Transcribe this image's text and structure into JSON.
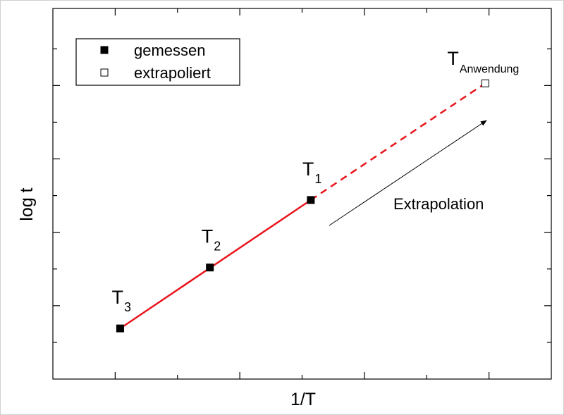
{
  "chart_data": {
    "type": "scatter",
    "x_label": "1/T",
    "y_label": "log t",
    "xlim": [
      0.5,
      4.5
    ],
    "ylim": [
      0,
      5.05
    ],
    "xticks": [
      1,
      1.5,
      2,
      2.5,
      3,
      3.5,
      4
    ],
    "yticks": [
      0.5,
      1,
      1.5,
      2,
      2.5,
      3,
      3.5,
      4,
      4.5
    ],
    "legend": "top-left",
    "fit_color": "#e8141b",
    "series": [
      {
        "name": "gemessen",
        "color": "#000000",
        "filled": true,
        "x": [
          1.04,
          1.76,
          2.57
        ],
        "values": [
          0.69,
          1.52,
          2.44
        ]
      },
      {
        "name": "extrapoliert",
        "color": "#000000",
        "filled": false,
        "x": [
          3.97
        ],
        "values": [
          4.03
        ]
      }
    ],
    "point_labels": [
      {
        "text": "T",
        "sub": "3"
      },
      {
        "text": "T",
        "sub": "2"
      },
      {
        "text": "T",
        "sub": "1"
      },
      {
        "text": "T",
        "sub": "Anwendung"
      }
    ],
    "annotation": "Extrapolation"
  }
}
